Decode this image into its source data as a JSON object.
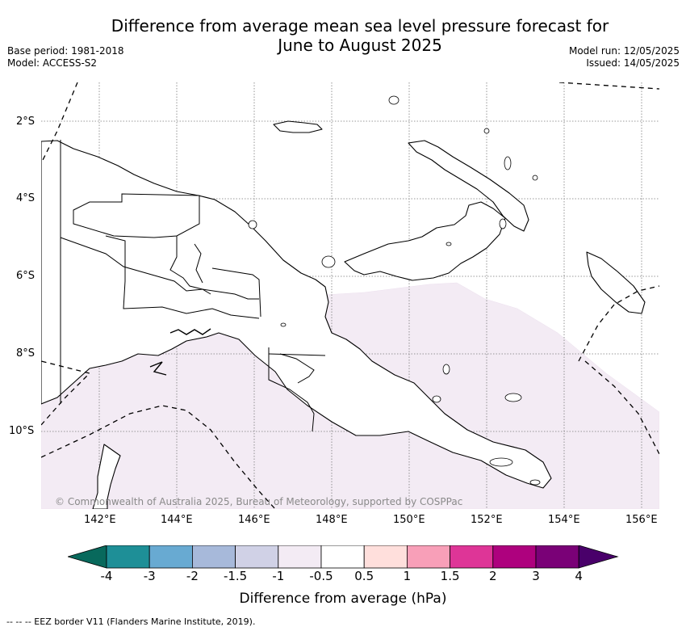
{
  "header": {
    "title_line1": "Difference from average mean sea level pressure forecast for",
    "title_line2": "June to August 2025",
    "base_period": "Base period: 1981-2018",
    "model": "Model: ACCESS-S2",
    "model_run": "Model run: 12/05/2025",
    "issued": "Issued: 14/05/2025"
  },
  "map": {
    "lat_labels": [
      "2°S",
      "4°S",
      "6°S",
      "8°S",
      "10°S"
    ],
    "lon_labels": [
      "142°E",
      "144°E",
      "146°E",
      "148°E",
      "150°E",
      "152°E",
      "154°E",
      "156°E"
    ],
    "copyright": "© Commonwealth of Australia 2025, Bureau of Meteorology, supported by COSPPac",
    "shaded_category": "-1 to -0.5 hPa",
    "shade_color": "#f3ebf4"
  },
  "colorbar": {
    "title": "Difference from average (hPa)",
    "labels": [
      "-4",
      "-3",
      "-2",
      "-1.5",
      "-1",
      "-0.5",
      "0.5",
      "1",
      "1.5",
      "2",
      "3",
      "4"
    ],
    "colors": [
      "#08695c",
      "#1e8f97",
      "#68aad2",
      "#a7b9da",
      "#d0d1e6",
      "#f3ebf4",
      "#ffffff",
      "#ffdfdc",
      "#f89fb8",
      "#de3597",
      "#ae017e",
      "#7a0177",
      "#49006a"
    ]
  },
  "legend": {
    "eez": "-- -- -- EEZ border V11 (Flanders Marine Institute, 2019)."
  }
}
